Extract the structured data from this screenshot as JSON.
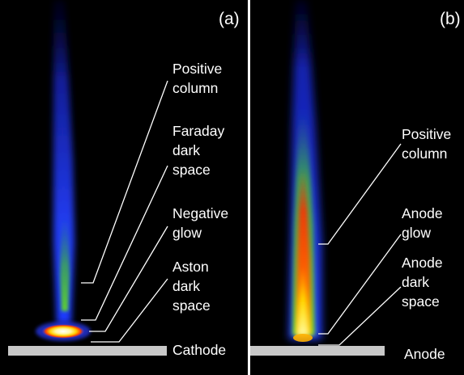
{
  "panel_a": {
    "tag": "(a)",
    "labels": {
      "positive_column": [
        "Positive",
        "column"
      ],
      "faraday_dark_space": [
        "Faraday",
        "dark",
        "space"
      ],
      "negative_glow": [
        "Negative",
        "glow"
      ],
      "aston_dark_space": [
        "Aston",
        "dark",
        "space"
      ],
      "cathode": "Cathode"
    }
  },
  "panel_b": {
    "tag": "(b)",
    "labels": {
      "positive_column": [
        "Positive",
        "column"
      ],
      "anode_glow": [
        "Anode",
        "glow"
      ],
      "anode_dark_space": [
        "Anode",
        "dark",
        "space"
      ],
      "anode": "Anode"
    }
  },
  "colors": {
    "background": "#000000",
    "electrode": "#c8c8c8",
    "leader_line": "#ffffff",
    "glow_blue": "#1f3cff",
    "glow_green": "#4ec832",
    "glow_red": "#ff2a00",
    "glow_yellow": "#ffe600"
  }
}
